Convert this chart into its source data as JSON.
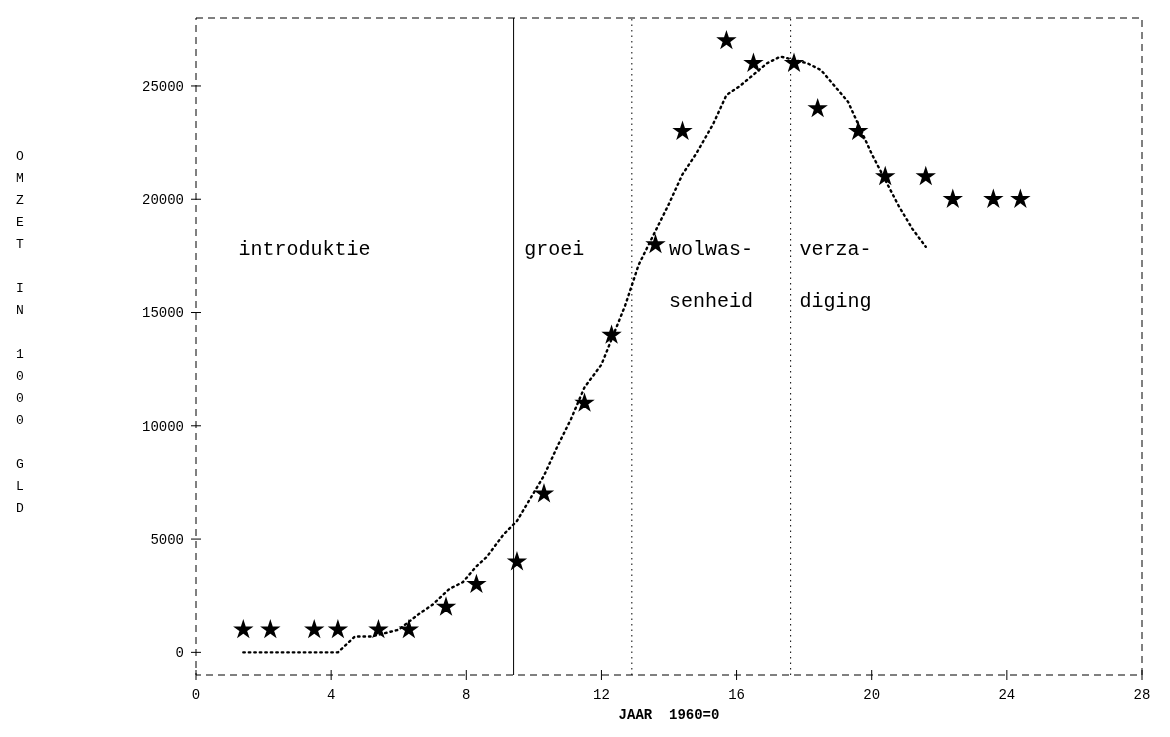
{
  "chart_data": {
    "type": "scatter",
    "xlabel": "JAAR  1960=0",
    "ylabel": "OMZET IN 1000 GLD",
    "xlim": [
      0,
      28
    ],
    "xticks": [
      0,
      4,
      8,
      12,
      16,
      20,
      24,
      28
    ],
    "ylim": [
      -1000,
      28000
    ],
    "yticks": [
      0,
      5000,
      10000,
      15000,
      20000,
      25000
    ],
    "grid": false,
    "series": [
      {
        "marker": "star",
        "color": "#000000",
        "x": [
          1.4,
          2.2,
          3.5,
          4.2,
          5.4,
          6.3,
          7.4,
          8.3,
          9.5,
          10.3,
          11.5,
          12.3,
          13.6,
          14.4,
          15.7,
          16.5,
          17.7,
          18.4,
          19.6,
          20.4,
          21.6,
          22.4,
          23.6,
          24.4
        ],
        "values": [
          1000,
          1000,
          1000,
          1000,
          1000,
          1000,
          2000,
          3000,
          4000,
          7000,
          11000,
          14000,
          18000,
          23000,
          27000,
          26000,
          26000,
          24000,
          23000,
          21000,
          21000,
          20000,
          20000,
          20000
        ]
      },
      {
        "type": "line",
        "line_style": "dotted",
        "marker": "none",
        "color": "#000000",
        "x": [
          1.4,
          4.2,
          4.7,
          5.2,
          6.0,
          6.6,
          7.0,
          7.5,
          7.9,
          8.3,
          8.6,
          9.1,
          9.5,
          9.9,
          10.3,
          10.7,
          11.1,
          11.5,
          12.0,
          12.7,
          13.1,
          14.0,
          14.4,
          14.8,
          15.3,
          15.7,
          16.1,
          16.9,
          17.3,
          18.1,
          18.5,
          18.9,
          19.3,
          20.0,
          20.8,
          21.2,
          21.6
        ],
        "values": [
          0,
          0,
          700,
          700,
          1000,
          1700,
          2100,
          2800,
          3100,
          3800,
          4200,
          5200,
          5800,
          6800,
          7800,
          9100,
          10300,
          11700,
          12700,
          15300,
          17100,
          19800,
          21100,
          22000,
          23300,
          24600,
          25000,
          26000,
          26300,
          26000,
          25700,
          25000,
          24300,
          22000,
          19700,
          18700,
          17900
        ]
      }
    ],
    "ref_lines": [
      {
        "axis": "x",
        "value": 9.4,
        "line_style": "solid"
      },
      {
        "axis": "x",
        "value": 12.9,
        "line_style": "dotted"
      },
      {
        "axis": "x",
        "value": 17.6,
        "line_style": "dotted"
      }
    ],
    "annotations": [
      "introduktie",
      "groei",
      "wolwas-",
      "senheid",
      "verza-",
      "diging"
    ]
  }
}
